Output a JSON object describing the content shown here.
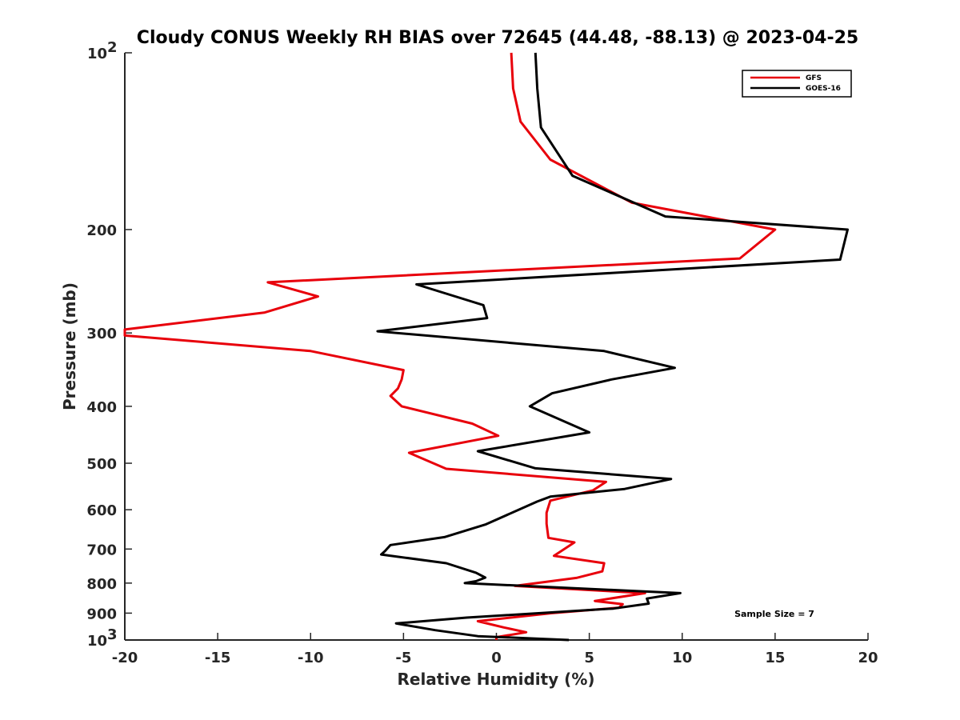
{
  "chart_data": {
    "type": "line",
    "title": "Cloudy CONUS Weekly RH BIAS over 72645 (44.48, -88.13) @ 2023-04-25",
    "xlabel": "Relative Humidity (%)",
    "ylabel": "Pressure (mb)",
    "xlim": [
      -20,
      20
    ],
    "ylim": [
      1000,
      100
    ],
    "y_scale": "log",
    "x_ticks": [
      "-20",
      "-15",
      "-10",
      "-5",
      "0",
      "5",
      "10",
      "15",
      "20"
    ],
    "y_ticks": [
      {
        "value": 100,
        "label": "10",
        "sup": "2"
      },
      {
        "value": 200,
        "label": "200",
        "sup": ""
      },
      {
        "value": 300,
        "label": "300",
        "sup": ""
      },
      {
        "value": 400,
        "label": "400",
        "sup": ""
      },
      {
        "value": 500,
        "label": "500",
        "sup": ""
      },
      {
        "value": 600,
        "label": "600",
        "sup": ""
      },
      {
        "value": 700,
        "label": "700",
        "sup": ""
      },
      {
        "value": 800,
        "label": "800",
        "sup": ""
      },
      {
        "value": 900,
        "label": "900",
        "sup": ""
      },
      {
        "value": 1000,
        "label": "10",
        "sup": "3"
      }
    ],
    "grid": false,
    "legend_position": "top-right",
    "annotation": "Sample Size = 7",
    "series": [
      {
        "name": "GFS",
        "color": "#e8000b",
        "points": [
          [
            0.8,
            100
          ],
          [
            0.9,
            115
          ],
          [
            1.3,
            131
          ],
          [
            2.9,
            152
          ],
          [
            7.3,
            180
          ],
          [
            15.0,
            200
          ],
          [
            13.1,
            224
          ],
          [
            -12.3,
            246
          ],
          [
            -9.6,
            260
          ],
          [
            -12.5,
            277
          ],
          [
            -20.0,
            296
          ],
          [
            -20.0,
            303
          ],
          [
            -10.0,
            322
          ],
          [
            -5.0,
            347
          ],
          [
            -5.1,
            360
          ],
          [
            -5.3,
            373
          ],
          [
            -5.7,
            384
          ],
          [
            -5.1,
            400
          ],
          [
            -1.3,
            428
          ],
          [
            0.1,
            449
          ],
          [
            -4.7,
            480
          ],
          [
            -2.7,
            511
          ],
          [
            5.9,
            538
          ],
          [
            5.2,
            556
          ],
          [
            2.9,
            579
          ],
          [
            2.7,
            607
          ],
          [
            2.7,
            634
          ],
          [
            2.8,
            670
          ],
          [
            4.2,
            682
          ],
          [
            3.1,
            719
          ],
          [
            5.8,
            740
          ],
          [
            5.7,
            764
          ],
          [
            4.3,
            784
          ],
          [
            1.0,
            809
          ],
          [
            8.0,
            832
          ],
          [
            5.3,
            858
          ],
          [
            6.8,
            869
          ],
          [
            6.6,
            881
          ],
          [
            3.0,
            900
          ],
          [
            -1.0,
            929
          ],
          [
            0.4,
            952
          ],
          [
            1.6,
            970
          ],
          [
            0.0,
            989
          ],
          [
            0.0,
            1000
          ]
        ]
      },
      {
        "name": "GOES-16",
        "color": "#000000",
        "points": [
          [
            2.1,
            100
          ],
          [
            2.2,
            115
          ],
          [
            2.4,
            134
          ],
          [
            4.1,
            162
          ],
          [
            9.1,
            190
          ],
          [
            18.9,
            200
          ],
          [
            18.5,
            225
          ],
          [
            -4.3,
            248
          ],
          [
            -0.7,
            269
          ],
          [
            -0.5,
            283
          ],
          [
            -6.4,
            298
          ],
          [
            5.8,
            322
          ],
          [
            9.6,
            344
          ],
          [
            6.2,
            360
          ],
          [
            3.0,
            380
          ],
          [
            1.8,
            400
          ],
          [
            5.0,
            443
          ],
          [
            -1.0,
            477
          ],
          [
            2.1,
            510
          ],
          [
            9.4,
            532
          ],
          [
            6.9,
            553
          ],
          [
            2.9,
            570
          ],
          [
            2.2,
            581
          ],
          [
            -0.6,
            636
          ],
          [
            -2.8,
            668
          ],
          [
            -5.7,
            689
          ],
          [
            -6.0,
            706
          ],
          [
            -6.2,
            715
          ],
          [
            -2.7,
            740
          ],
          [
            -1.1,
            768
          ],
          [
            -0.6,
            783
          ],
          [
            -1.1,
            794
          ],
          [
            -1.7,
            800
          ],
          [
            9.9,
            832
          ],
          [
            8.1,
            850
          ],
          [
            8.2,
            867
          ],
          [
            6.3,
            884
          ],
          [
            -1.6,
            916
          ],
          [
            -5.4,
            937
          ],
          [
            -3.3,
            962
          ],
          [
            -1.0,
            985
          ],
          [
            3.9,
            1000
          ]
        ]
      }
    ]
  }
}
